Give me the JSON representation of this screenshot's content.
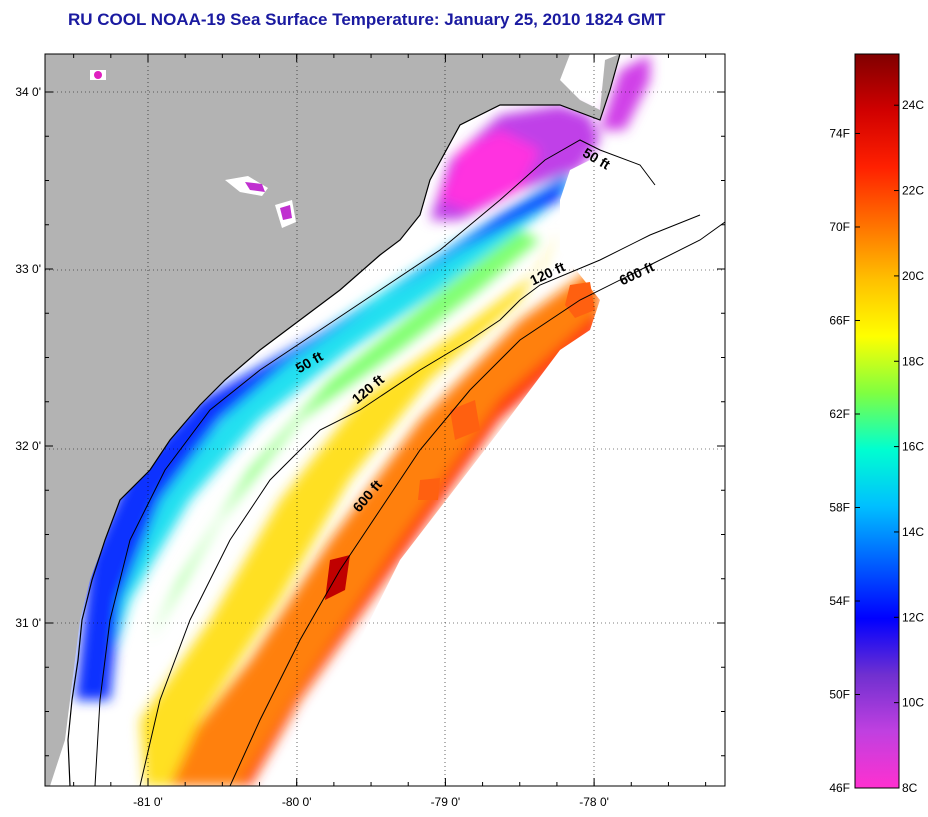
{
  "title": "RU COOL  NOAA-19  Sea Surface Temperature:  January 25, 2010 1824 GMT",
  "map": {
    "lat_labels": [
      {
        "lat": 34,
        "label": "34 0'"
      },
      {
        "lat": 33,
        "label": "33 0'"
      },
      {
        "lat": 32,
        "label": "32 0'"
      },
      {
        "lat": 31,
        "label": "31 0'"
      }
    ],
    "lon_labels": [
      {
        "lon": -81,
        "label": "-81 0'"
      },
      {
        "lon": -80,
        "label": "-80 0'"
      },
      {
        "lon": -79,
        "label": "-79 0'"
      },
      {
        "lon": -78,
        "label": "-78 0'"
      }
    ],
    "contour_labels": [
      {
        "text": "50 ft",
        "lon": -78.0,
        "lat": 33.6
      },
      {
        "text": "120 ft",
        "lon": -78.3,
        "lat": 32.95
      },
      {
        "text": "600 ft",
        "lon": -77.7,
        "lat": 32.95
      },
      {
        "text": "50 ft",
        "lon": -79.9,
        "lat": 32.45
      },
      {
        "text": "120 ft",
        "lon": -79.5,
        "lat": 32.3
      },
      {
        "text": "600 ft",
        "lon": -79.5,
        "lat": 31.7
      }
    ],
    "colors": {
      "land": "#b3b3b3",
      "no_data": "#ffffff",
      "contour": "#000000",
      "grid": "#000000"
    }
  },
  "colorbar": {
    "f_labels": [
      "74F",
      "70F",
      "66F",
      "62F",
      "58F",
      "54F",
      "50F",
      "46F"
    ],
    "c_labels": [
      "24C",
      "22C",
      "20C",
      "18C",
      "16C",
      "14C",
      "12C",
      "10C",
      "8C"
    ],
    "stops": [
      "#ff30d0",
      "#c040e0",
      "#7030d0",
      "#0000ff",
      "#0060ff",
      "#00c0ff",
      "#00ffd0",
      "#80ff40",
      "#ffff00",
      "#ffc000",
      "#ff7000",
      "#ff2000",
      "#d00000",
      "#800000"
    ]
  }
}
